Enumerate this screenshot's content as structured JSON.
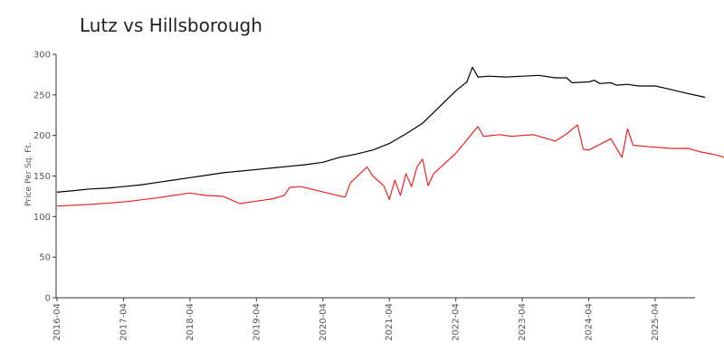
{
  "chart_data": {
    "type": "line",
    "title": "Lutz vs Hillsborough",
    "ylabel": "Price Per Sq. Ft.",
    "xlabel": "",
    "ylim": [
      0,
      300
    ],
    "yticks": [
      0,
      50,
      100,
      150,
      200,
      250,
      300
    ],
    "xlim": [
      "2016-04",
      "2026-01"
    ],
    "xticks": [
      "2016-04",
      "2017-04",
      "2018-04",
      "2019-04",
      "2020-04",
      "2021-04",
      "2022-04",
      "2023-04",
      "2024-04",
      "2025-04"
    ],
    "legend": "none",
    "grid": false,
    "series": [
      {
        "color": "#000000",
        "points": [
          [
            "2016-04",
            130
          ],
          [
            "2016-07",
            132
          ],
          [
            "2016-10",
            134
          ],
          [
            "2017-01",
            135
          ],
          [
            "2017-04",
            137
          ],
          [
            "2017-07",
            139
          ],
          [
            "2017-10",
            142
          ],
          [
            "2018-01",
            145
          ],
          [
            "2018-04",
            148
          ],
          [
            "2018-07",
            151
          ],
          [
            "2018-10",
            154
          ],
          [
            "2019-01",
            156
          ],
          [
            "2019-04",
            158
          ],
          [
            "2019-07",
            160
          ],
          [
            "2019-10",
            162
          ],
          [
            "2020-01",
            164
          ],
          [
            "2020-04",
            167
          ],
          [
            "2020-07",
            173
          ],
          [
            "2020-10",
            177
          ],
          [
            "2021-01",
            182
          ],
          [
            "2021-04",
            190
          ],
          [
            "2021-07",
            202
          ],
          [
            "2021-10",
            215
          ],
          [
            "2022-01",
            235
          ],
          [
            "2022-04",
            255
          ],
          [
            "2022-06",
            266
          ],
          [
            "2022-07",
            284
          ],
          [
            "2022-08",
            272
          ],
          [
            "2022-10",
            273
          ],
          [
            "2023-01",
            272
          ],
          [
            "2023-04",
            273
          ],
          [
            "2023-07",
            274
          ],
          [
            "2023-10",
            271
          ],
          [
            "2023-12",
            271
          ],
          [
            "2024-01",
            265
          ],
          [
            "2024-04",
            266
          ],
          [
            "2024-05",
            268
          ],
          [
            "2024-06",
            264
          ],
          [
            "2024-08",
            265
          ],
          [
            "2024-09",
            262
          ],
          [
            "2024-11",
            263
          ],
          [
            "2025-01",
            261
          ],
          [
            "2025-04",
            261
          ],
          [
            "2025-06",
            258
          ],
          [
            "2025-09",
            253
          ],
          [
            "2026-01",
            247
          ]
        ]
      },
      {
        "color": "#ee2222",
        "points": [
          [
            "2016-04",
            113
          ],
          [
            "2016-10",
            115
          ],
          [
            "2017-04",
            118
          ],
          [
            "2017-10",
            123
          ],
          [
            "2018-01",
            126
          ],
          [
            "2018-04",
            129
          ],
          [
            "2018-07",
            126
          ],
          [
            "2018-10",
            125
          ],
          [
            "2019-01",
            116
          ],
          [
            "2019-04",
            119
          ],
          [
            "2019-07",
            122
          ],
          [
            "2019-09",
            126
          ],
          [
            "2019-10",
            136
          ],
          [
            "2019-12",
            137
          ],
          [
            "2020-03",
            132
          ],
          [
            "2020-06",
            127
          ],
          [
            "2020-08",
            124
          ],
          [
            "2020-09",
            142
          ],
          [
            "2020-12",
            161
          ],
          [
            "2021-01",
            150
          ],
          [
            "2021-03",
            138
          ],
          [
            "2021-04",
            121
          ],
          [
            "2021-05",
            145
          ],
          [
            "2021-06",
            126
          ],
          [
            "2021-07",
            153
          ],
          [
            "2021-08",
            137
          ],
          [
            "2021-09",
            161
          ],
          [
            "2021-10",
            171
          ],
          [
            "2021-11",
            138
          ],
          [
            "2021-12",
            153
          ],
          [
            "2022-04",
            178
          ],
          [
            "2022-08",
            211
          ],
          [
            "2022-09",
            199
          ],
          [
            "2022-12",
            201
          ],
          [
            "2023-02",
            199
          ],
          [
            "2023-06",
            201
          ],
          [
            "2023-10",
            193
          ],
          [
            "2023-12",
            202
          ],
          [
            "2024-02",
            213
          ],
          [
            "2024-03",
            183
          ],
          [
            "2024-04",
            182
          ],
          [
            "2024-08",
            196
          ],
          [
            "2024-10",
            173
          ],
          [
            "2024-11",
            208
          ],
          [
            "2024-12",
            188
          ],
          [
            "2025-03",
            186
          ],
          [
            "2025-07",
            184
          ],
          [
            "2025-10",
            184
          ],
          [
            "2025-12",
            180
          ],
          [
            "2026-03",
            176
          ],
          [
            "2026-05",
            172
          ]
        ]
      }
    ]
  }
}
